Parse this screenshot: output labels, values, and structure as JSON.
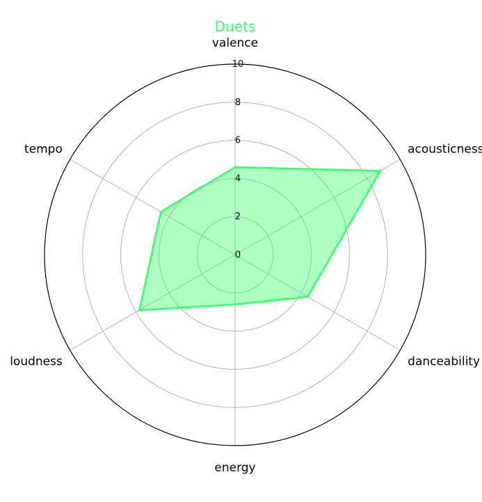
{
  "colors": {
    "series": "#33ff66",
    "fill": "#33ff66"
  },
  "chart_data": {
    "type": "radar",
    "title": "Duets",
    "categories": [
      "valence",
      "acousticness",
      "danceability",
      "energy",
      "loudness",
      "tempo"
    ],
    "series": [
      {
        "values": [
          4.6,
          8.8,
          4.4,
          2.6,
          5.8,
          4.5
        ]
      }
    ],
    "rlim": [
      0,
      10
    ],
    "rticks": [
      0,
      2,
      4,
      6,
      8,
      10
    ],
    "grid": true
  }
}
